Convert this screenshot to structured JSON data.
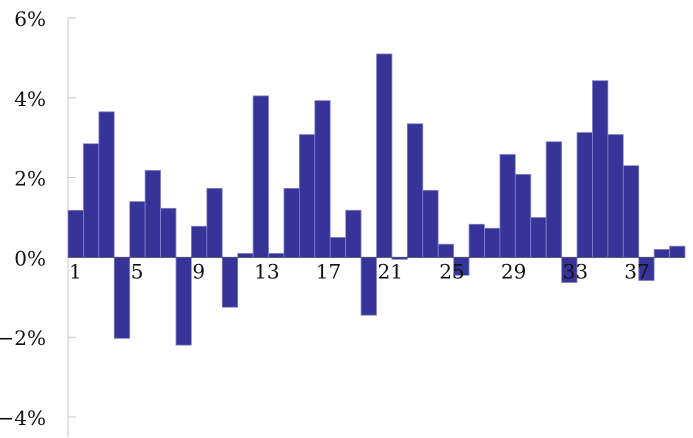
{
  "chart_data": {
    "type": "bar",
    "title": "",
    "xlabel": "",
    "ylabel": "",
    "categories": [
      1,
      2,
      3,
      4,
      5,
      6,
      7,
      8,
      9,
      10,
      11,
      12,
      13,
      14,
      15,
      16,
      17,
      18,
      19,
      20,
      21,
      22,
      23,
      24,
      25,
      26,
      27,
      28,
      29,
      30,
      31,
      32,
      33,
      34,
      35,
      36,
      37,
      38,
      39,
      40
    ],
    "x_tick_labels": [
      "1",
      "5",
      "9",
      "13",
      "17",
      "21",
      "25",
      "29",
      "33",
      "37"
    ],
    "x_tick_categories": [
      1,
      5,
      9,
      13,
      17,
      21,
      25,
      29,
      33,
      37
    ],
    "values": [
      1.18,
      2.85,
      3.65,
      -2.03,
      1.4,
      2.18,
      1.23,
      -2.2,
      0.78,
      1.73,
      -1.25,
      0.1,
      4.05,
      0.1,
      1.73,
      3.08,
      3.93,
      0.5,
      1.18,
      -1.45,
      5.1,
      -0.05,
      3.35,
      1.68,
      0.33,
      -0.45,
      0.83,
      0.73,
      2.58,
      2.08,
      1.0,
      2.9,
      -0.63,
      3.13,
      4.43,
      3.08,
      2.3,
      -0.58,
      0.2,
      0.28
    ],
    "unit": "%",
    "ylim": [
      -4,
      6
    ],
    "y_ticks": [
      -4,
      -2,
      0,
      2,
      4,
      6
    ],
    "y_tick_labels": [
      "−4%",
      "−2%",
      "0%",
      "2%",
      "4%",
      "6%"
    ],
    "grid": false,
    "legend": "none",
    "bar_color": "#363399",
    "bar_edge_color": "#8a88c8"
  }
}
